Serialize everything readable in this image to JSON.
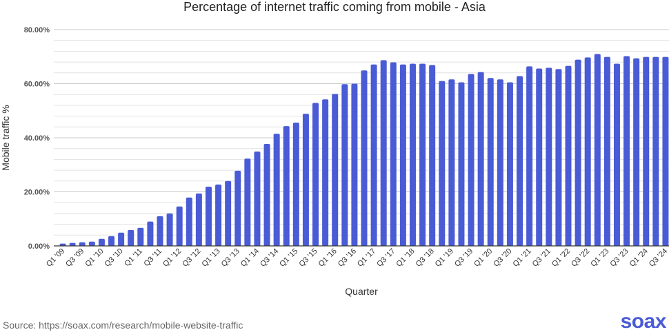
{
  "chart_data": {
    "type": "bar",
    "title": "Percentage of internet traffic coming from mobile - Asia",
    "xlabel": "Quarter",
    "ylabel": "Mobile traffic %",
    "ylim": [
      0,
      80
    ],
    "yticks": [
      "0.00%",
      "20.00%",
      "40.00%",
      "60.00%",
      "80.00%"
    ],
    "grid": true,
    "bar_color": "#4a5bd6",
    "categories": [
      "Q1 '09",
      "Q2 '09",
      "Q3 '09",
      "Q4 '09",
      "Q1 '10",
      "Q2 '10",
      "Q3 '10",
      "Q4 '10",
      "Q1 '11",
      "Q2 '11",
      "Q3 '11",
      "Q4 '11",
      "Q1 '12",
      "Q2 '12",
      "Q3 '12",
      "Q4 '12",
      "Q1 '13",
      "Q2 '13",
      "Q3 '13",
      "Q4 '13",
      "Q1 '14",
      "Q2 '14",
      "Q3 '14",
      "Q4 '14",
      "Q1 '15",
      "Q2 '15",
      "Q3 '15",
      "Q4 '15",
      "Q1 '16",
      "Q2 '16",
      "Q3 '16",
      "Q4 '16",
      "Q1 '17",
      "Q2 '17",
      "Q3 '17",
      "Q4 '17",
      "Q1 '18",
      "Q2 '18",
      "Q3 '18",
      "Q4 '18",
      "Q1 '19",
      "Q2 '19",
      "Q3 '19",
      "Q4 '19",
      "Q1 '20",
      "Q2 '20",
      "Q3 '20",
      "Q4 '20",
      "Q1 '21",
      "Q2 '21",
      "Q3 '21",
      "Q4 '21",
      "Q1 '22",
      "Q2 '22",
      "Q3 '22",
      "Q4 '22",
      "Q1 '23",
      "Q2 '23",
      "Q3 '23",
      "Q4 '23",
      "Q1 '24",
      "Q2 '24",
      "Q3 '24"
    ],
    "values": [
      0.85,
      1.1,
      1.35,
      1.6,
      2.6,
      3.6,
      4.9,
      5.9,
      6.7,
      9.0,
      11.0,
      12.0,
      14.6,
      17.9,
      19.4,
      21.9,
      22.7,
      24.0,
      27.8,
      32.3,
      34.9,
      37.7,
      41.5,
      44.3,
      45.6,
      48.9,
      52.9,
      54.2,
      56.2,
      59.8,
      60.0,
      64.9,
      67.1,
      68.7,
      67.9,
      67.1,
      67.4,
      67.4,
      66.9,
      61.0,
      61.6,
      60.5,
      63.6,
      64.3,
      62.1,
      61.6,
      60.5,
      62.8,
      66.4,
      65.6,
      65.9,
      65.4,
      66.6,
      68.9,
      69.7,
      71.0,
      69.9,
      67.4,
      70.2,
      69.4,
      69.9,
      69.9,
      69.9
    ]
  },
  "footer": {
    "source": "Source: https://soax.com/research/mobile-website-traffic",
    "logo": "soax"
  }
}
